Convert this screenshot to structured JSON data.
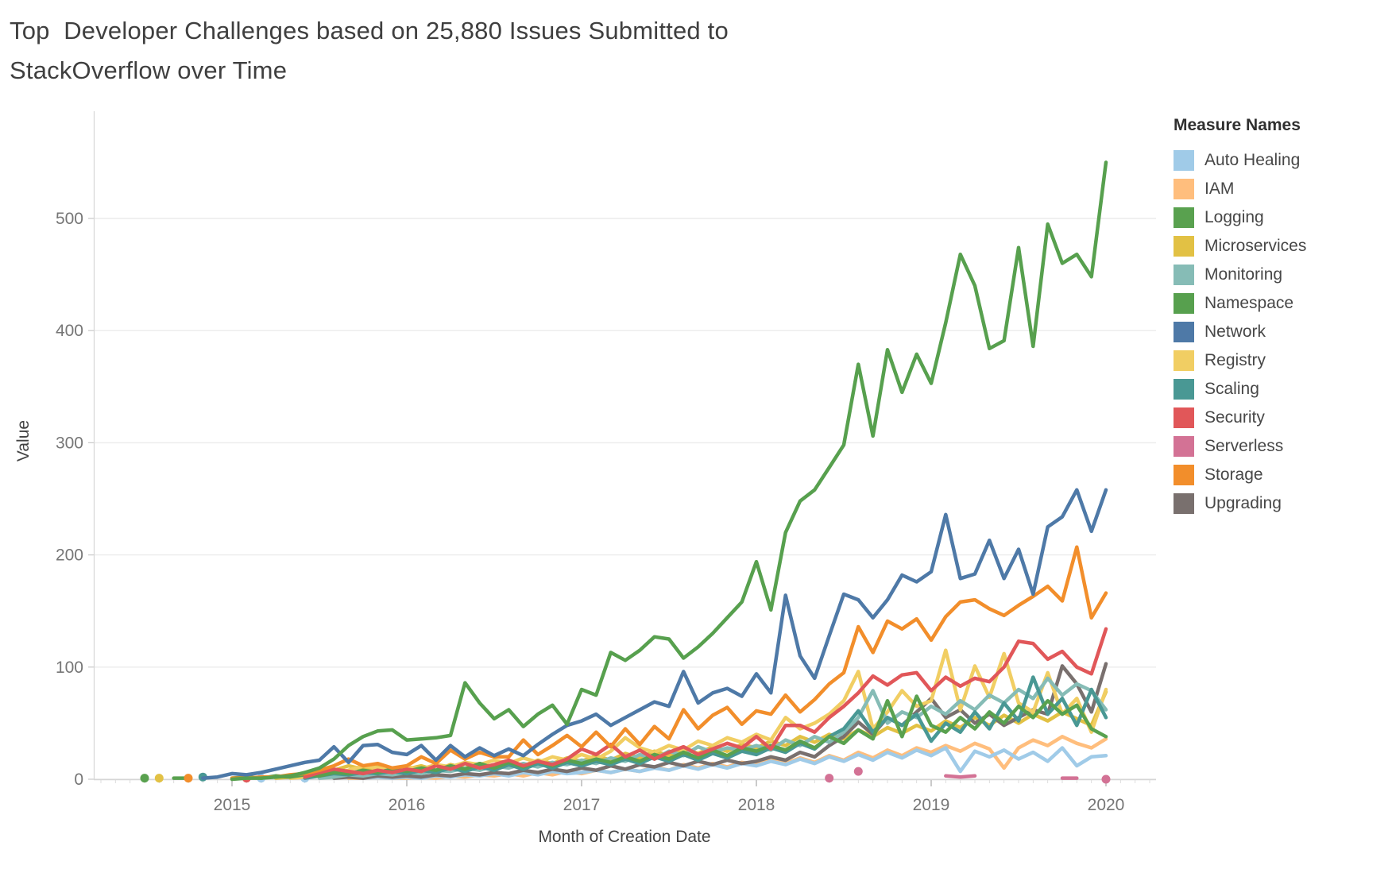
{
  "title": {
    "line1": "Top  Developer Challenges based on 25,880 Issues Submitted to",
    "line2": "StackOverflow over Time"
  },
  "legend": {
    "title": "Measure Names"
  },
  "axes": {
    "x": {
      "title": "Month of Creation Date",
      "ticks": [
        "2015",
        "2016",
        "2017",
        "2018",
        "2019",
        "2020"
      ]
    },
    "y": {
      "title": "Value",
      "ticks": [
        "0",
        "100",
        "200",
        "300",
        "400",
        "500"
      ]
    }
  },
  "chart_data": {
    "type": "line",
    "title": "Top  Developer Challenges based on 25,880 Issues Submitted to StackOverflow over Time",
    "xlabel": "Month of Creation Date",
    "ylabel": "Value",
    "ylim": [
      0,
      560
    ],
    "grid": true,
    "legend_position": "right",
    "x": [
      "2014-07",
      "2014-08",
      "2014-09",
      "2014-10",
      "2014-11",
      "2014-12",
      "2015-01",
      "2015-02",
      "2015-03",
      "2015-04",
      "2015-05",
      "2015-06",
      "2015-07",
      "2015-08",
      "2015-09",
      "2015-10",
      "2015-11",
      "2015-12",
      "2016-01",
      "2016-02",
      "2016-03",
      "2016-04",
      "2016-05",
      "2016-06",
      "2016-07",
      "2016-08",
      "2016-09",
      "2016-10",
      "2016-11",
      "2016-12",
      "2017-01",
      "2017-02",
      "2017-03",
      "2017-04",
      "2017-05",
      "2017-06",
      "2017-07",
      "2017-08",
      "2017-09",
      "2017-10",
      "2017-11",
      "2017-12",
      "2018-01",
      "2018-02",
      "2018-03",
      "2018-04",
      "2018-05",
      "2018-06",
      "2018-07",
      "2018-08",
      "2018-09",
      "2018-10",
      "2018-11",
      "2018-12",
      "2019-01",
      "2019-02",
      "2019-03",
      "2019-04",
      "2019-05",
      "2019-06",
      "2019-07",
      "2019-08",
      "2019-09",
      "2019-10",
      "2019-11",
      "2019-12",
      "2020-01"
    ],
    "draw_order": [
      "Serverless",
      "IAM",
      "Auto Healing",
      "Microservices",
      "Upgrading",
      "Registry",
      "Monitoring",
      "Scaling",
      "Logging",
      "Security",
      "Storage",
      "Network",
      "Namespace"
    ],
    "series": [
      {
        "name": "Auto Healing",
        "color": "#a0cbe8",
        "values": [
          null,
          null,
          null,
          null,
          null,
          null,
          null,
          null,
          1,
          null,
          null,
          1,
          null,
          null,
          null,
          1,
          2,
          1,
          2,
          1,
          3,
          2,
          4,
          3,
          5,
          3,
          6,
          4,
          7,
          5,
          6,
          8,
          6,
          9,
          7,
          10,
          8,
          12,
          9,
          13,
          10,
          14,
          12,
          16,
          13,
          18,
          14,
          20,
          16,
          22,
          17,
          24,
          19,
          26,
          21,
          28,
          7,
          25,
          20,
          26,
          18,
          24,
          16,
          28,
          12,
          20,
          21
        ]
      },
      {
        "name": "IAM",
        "color": "#ffbe7d",
        "values": [
          null,
          null,
          null,
          null,
          null,
          null,
          null,
          null,
          null,
          null,
          null,
          null,
          null,
          null,
          1,
          1,
          2,
          1,
          1,
          2,
          1,
          3,
          2,
          4,
          3,
          5,
          3,
          6,
          4,
          7,
          5,
          8,
          6,
          9,
          7,
          11,
          8,
          13,
          10,
          14,
          11,
          15,
          13,
          17,
          14,
          19,
          15,
          21,
          17,
          24,
          19,
          26,
          21,
          28,
          24,
          30,
          25,
          32,
          27,
          10,
          28,
          35,
          30,
          38,
          32,
          28,
          36
        ]
      },
      {
        "name": "Logging",
        "color": "#59a14f",
        "values": [
          1,
          null,
          1,
          1,
          null,
          null,
          1,
          2,
          1,
          3,
          2,
          4,
          3,
          6,
          5,
          8,
          6,
          9,
          7,
          10,
          8,
          12,
          9,
          14,
          10,
          15,
          11,
          16,
          12,
          17,
          14,
          18,
          15,
          20,
          16,
          22,
          18,
          24,
          19,
          26,
          21,
          28,
          25,
          30,
          26,
          34,
          28,
          38,
          32,
          44,
          36,
          70,
          38,
          74,
          48,
          42,
          55,
          45,
          60,
          50,
          65,
          55,
          70,
          58,
          66,
          45,
          38
        ]
      },
      {
        "name": "Microservices",
        "color": "#e2c144",
        "values": [
          null,
          1,
          null,
          null,
          null,
          null,
          null,
          null,
          null,
          1,
          2,
          3,
          5,
          8,
          12,
          9,
          11,
          7,
          9,
          12,
          8,
          13,
          10,
          14,
          11,
          16,
          12,
          17,
          14,
          19,
          16,
          21,
          17,
          23,
          19,
          25,
          21,
          27,
          23,
          29,
          25,
          31,
          28,
          34,
          30,
          38,
          33,
          40,
          36,
          44,
          38,
          46,
          41,
          48,
          43,
          52,
          46,
          55,
          48,
          57,
          50,
          58,
          52,
          60,
          54,
          48,
          78
        ]
      },
      {
        "name": "Monitoring",
        "color": "#86bcb6",
        "values": [
          null,
          null,
          null,
          null,
          null,
          null,
          null,
          null,
          null,
          null,
          null,
          null,
          1,
          2,
          4,
          3,
          5,
          4,
          6,
          5,
          8,
          7,
          10,
          8,
          12,
          10,
          14,
          11,
          15,
          13,
          17,
          14,
          19,
          16,
          22,
          18,
          25,
          21,
          29,
          24,
          28,
          26,
          30,
          26,
          35,
          30,
          38,
          33,
          42,
          55,
          79,
          50,
          60,
          55,
          65,
          58,
          70,
          62,
          75,
          68,
          80,
          72,
          90,
          75,
          85,
          79,
          62
        ]
      },
      {
        "name": "Namespace",
        "color": "#57a04e",
        "values": [
          null,
          null,
          null,
          null,
          null,
          null,
          0,
          1,
          1,
          2,
          3,
          6,
          10,
          18,
          30,
          38,
          43,
          44,
          35,
          36,
          37,
          39,
          86,
          68,
          54,
          62,
          47,
          58,
          66,
          49,
          80,
          75,
          113,
          106,
          115,
          127,
          125,
          108,
          118,
          130,
          144,
          158,
          194,
          151,
          220,
          248,
          258,
          278,
          298,
          370,
          306,
          383,
          345,
          379,
          353,
          407,
          468,
          440,
          384,
          391,
          474,
          386,
          495,
          460,
          468,
          448,
          550
        ]
      },
      {
        "name": "Network",
        "color": "#4e79a7",
        "values": [
          null,
          null,
          null,
          null,
          1,
          2,
          5,
          4,
          6,
          9,
          12,
          15,
          17,
          29,
          15,
          30,
          31,
          24,
          22,
          30,
          17,
          30,
          20,
          28,
          21,
          27,
          21,
          31,
          40,
          48,
          52,
          58,
          48,
          55,
          62,
          69,
          65,
          96,
          68,
          77,
          81,
          74,
          94,
          77,
          164,
          110,
          90,
          128,
          165,
          160,
          144,
          160,
          182,
          176,
          185,
          236,
          179,
          183,
          213,
          179,
          205,
          165,
          225,
          234,
          258,
          221,
          258
        ]
      },
      {
        "name": "Registry",
        "color": "#f1ce63",
        "values": [
          null,
          null,
          null,
          null,
          null,
          null,
          null,
          null,
          null,
          null,
          1,
          2,
          3,
          5,
          8,
          12,
          10,
          8,
          11,
          9,
          13,
          11,
          15,
          13,
          17,
          14,
          19,
          15,
          20,
          17,
          22,
          18,
          25,
          37,
          28,
          24,
          30,
          26,
          34,
          30,
          37,
          33,
          40,
          35,
          55,
          45,
          50,
          58,
          70,
          96,
          45,
          60,
          79,
          65,
          70,
          115,
          62,
          101,
          73,
          112,
          68,
          60,
          95,
          58,
          72,
          42,
          80
        ]
      },
      {
        "name": "Scaling",
        "color": "#499894",
        "values": [
          null,
          null,
          null,
          null,
          2,
          null,
          null,
          null,
          null,
          null,
          null,
          1,
          3,
          5,
          4,
          6,
          5,
          7,
          5,
          8,
          6,
          10,
          7,
          11,
          8,
          13,
          9,
          14,
          10,
          15,
          12,
          16,
          13,
          18,
          14,
          20,
          16,
          22,
          17,
          23,
          19,
          25,
          22,
          28,
          24,
          32,
          27,
          38,
          45,
          61,
          42,
          55,
          48,
          58,
          34,
          50,
          42,
          60,
          45,
          68,
          52,
          91,
          58,
          72,
          48,
          80,
          55
        ]
      },
      {
        "name": "Security",
        "color": "#e15759",
        "values": [
          null,
          null,
          null,
          null,
          null,
          null,
          null,
          1,
          null,
          null,
          null,
          2,
          6,
          9,
          7,
          5,
          8,
          6,
          9,
          7,
          12,
          9,
          14,
          10,
          13,
          17,
          12,
          16,
          13,
          18,
          27,
          22,
          31,
          20,
          26,
          18,
          24,
          29,
          22,
          27,
          32,
          28,
          38,
          27,
          48,
          48,
          42,
          55,
          65,
          77,
          92,
          84,
          93,
          95,
          79,
          91,
          83,
          90,
          87,
          100,
          123,
          121,
          107,
          114,
          100,
          94,
          134
        ]
      },
      {
        "name": "Serverless",
        "color": "#d37295",
        "values": [
          null,
          null,
          null,
          null,
          null,
          null,
          null,
          null,
          null,
          null,
          null,
          null,
          null,
          null,
          null,
          null,
          null,
          null,
          null,
          null,
          null,
          null,
          null,
          null,
          null,
          null,
          null,
          null,
          null,
          null,
          null,
          null,
          null,
          null,
          null,
          null,
          null,
          null,
          null,
          null,
          null,
          null,
          null,
          null,
          null,
          null,
          null,
          1,
          null,
          7,
          null,
          null,
          null,
          null,
          null,
          3,
          2,
          3,
          null,
          null,
          null,
          null,
          null,
          1,
          1,
          null,
          0
        ]
      },
      {
        "name": "Storage",
        "color": "#f28e2b",
        "values": [
          null,
          null,
          null,
          1,
          null,
          null,
          1,
          1,
          2,
          2,
          4,
          5,
          8,
          12,
          18,
          12,
          14,
          10,
          12,
          20,
          14,
          26,
          18,
          24,
          20,
          20,
          35,
          22,
          30,
          39,
          29,
          42,
          29,
          45,
          31,
          47,
          36,
          62,
          45,
          57,
          64,
          49,
          61,
          58,
          75,
          60,
          71,
          85,
          95,
          136,
          113,
          141,
          134,
          143,
          124,
          145,
          158,
          160,
          152,
          146,
          155,
          163,
          172,
          159,
          207,
          144,
          166
        ]
      },
      {
        "name": "Upgrading",
        "color": "#79706e",
        "values": [
          null,
          null,
          null,
          null,
          null,
          null,
          null,
          null,
          null,
          null,
          null,
          null,
          null,
          1,
          2,
          1,
          3,
          2,
          3,
          2,
          4,
          3,
          5,
          4,
          6,
          5,
          8,
          6,
          9,
          7,
          10,
          8,
          12,
          9,
          13,
          11,
          15,
          12,
          16,
          13,
          17,
          14,
          16,
          20,
          17,
          24,
          20,
          30,
          38,
          51,
          40,
          55,
          48,
          60,
          72,
          55,
          62,
          50,
          58,
          48,
          55,
          62,
          58,
          101,
          85,
          60,
          103
        ]
      }
    ]
  }
}
